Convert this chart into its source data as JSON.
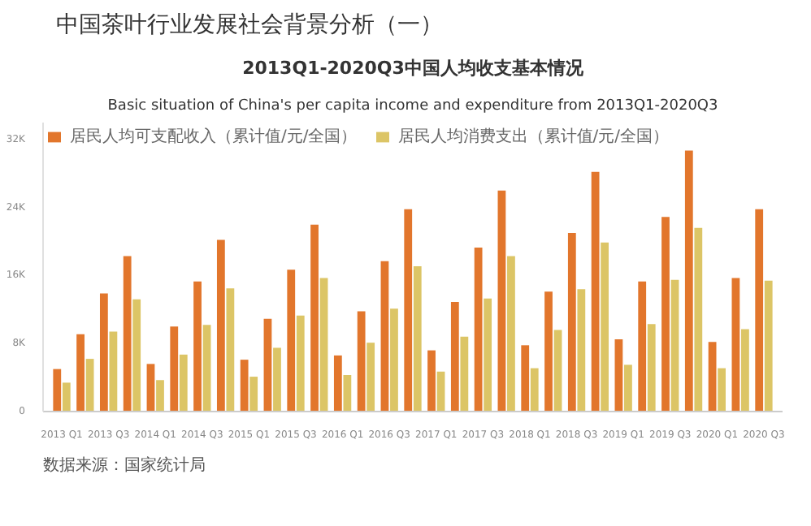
{
  "chart_data": {
    "type": "bar",
    "title": "中国茶叶行业发展社会背景分析（一）",
    "subtitle": "2013Q1-2020Q3中国人均收支基本情况",
    "categories": [
      "2013 Q1",
      null,
      "2013 Q3",
      null,
      "2014 Q1",
      null,
      "2014 Q3",
      null,
      "2015 Q1",
      null,
      "2015 Q3",
      null,
      "2016 Q1",
      null,
      "2016 Q3",
      null,
      "2017 Q1",
      null,
      "2017 Q3",
      null,
      "2018 Q1",
      null,
      "2018 Q3",
      null,
      "2019 Q1",
      null,
      "2019 Q3",
      null,
      "2020 Q1",
      null,
      "2020 Q3"
    ],
    "series": [
      {
        "name": "居民人均可支配收入（累计值/元/全国）",
        "color": "#e2762c",
        "values": [
          5000,
          9100,
          13900,
          18300,
          5600,
          10000,
          15300,
          20200,
          6100,
          10900,
          16700,
          22000,
          6600,
          11800,
          17700,
          23800,
          7200,
          12900,
          19300,
          26000,
          7800,
          14100,
          21000,
          28200,
          8500,
          15300,
          22900,
          30700,
          8200,
          15700,
          23800
        ]
      },
      {
        "name": "居民人均消费支出（累计值/元/全国）",
        "color": "#dcc566",
        "values": [
          3400,
          6200,
          9400,
          13200,
          3700,
          6700,
          10200,
          14500,
          4100,
          7500,
          11300,
          15700,
          4300,
          8100,
          12100,
          17100,
          4700,
          8800,
          13300,
          18300,
          5100,
          9600,
          14400,
          19900,
          5500,
          10300,
          15500,
          21600,
          5100,
          9700,
          15400
        ]
      }
    ],
    "ylim": [
      0,
      34000
    ],
    "yticks": [
      0,
      {
        "value": 8000,
        "label": "8K"
      },
      {
        "value": 16000,
        "label": "16K"
      },
      {
        "value": 24000,
        "label": "24K"
      },
      {
        "value": 32000,
        "label": "32K"
      }
    ],
    "grid": false,
    "legend": "top left",
    "annotations": [
      "Basic situation of China's per capita income and expenditure from 2013Q1-2020Q3",
      "数据来源：国家统计局"
    ]
  }
}
